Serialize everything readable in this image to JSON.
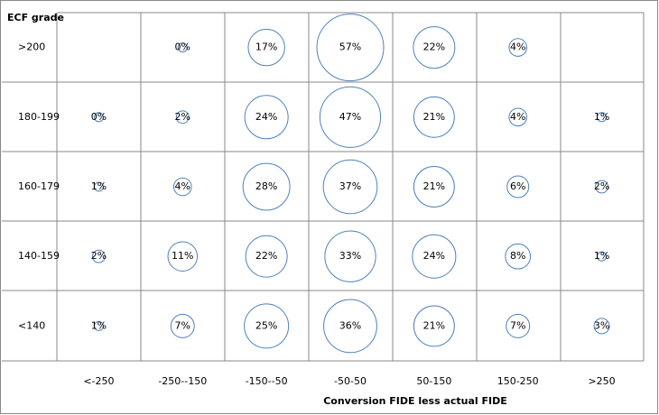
{
  "chart_data": {
    "type": "bubble",
    "ylabel": "ECF grade",
    "xlabel": "Conversion FIDE less actual FIDE",
    "categories": [
      "<-250",
      "-250--150",
      "-150--50",
      "-50-50",
      "50-150",
      "150-250",
      ">250"
    ],
    "color": "#4f81bd",
    "series": [
      {
        "name": ">200",
        "values": [
          null,
          0,
          17,
          57,
          22,
          4,
          null
        ],
        "value_labels": [
          null,
          "0%",
          "17%",
          "57%",
          "22%",
          "4%",
          null
        ]
      },
      {
        "name": "180-199",
        "values": [
          0,
          2,
          24,
          47,
          21,
          4,
          1
        ],
        "value_labels": [
          "0%",
          "2%",
          "24%",
          "47%",
          "21%",
          "4%",
          "1%"
        ]
      },
      {
        "name": "160-179",
        "values": [
          1,
          4,
          28,
          37,
          21,
          6,
          2
        ],
        "value_labels": [
          "1%",
          "4%",
          "28%",
          "37%",
          "21%",
          "6%",
          "2%"
        ]
      },
      {
        "name": "140-159",
        "values": [
          2,
          11,
          22,
          33,
          24,
          8,
          1
        ],
        "value_labels": [
          "2%",
          "11%",
          "22%",
          "33%",
          "24%",
          "8%",
          "1%"
        ]
      },
      {
        "name": "<140",
        "values": [
          1,
          7,
          25,
          36,
          21,
          7,
          3
        ],
        "value_labels": [
          "1%",
          "7%",
          "25%",
          "36%",
          "21%",
          "7%",
          "3%"
        ]
      }
    ]
  }
}
